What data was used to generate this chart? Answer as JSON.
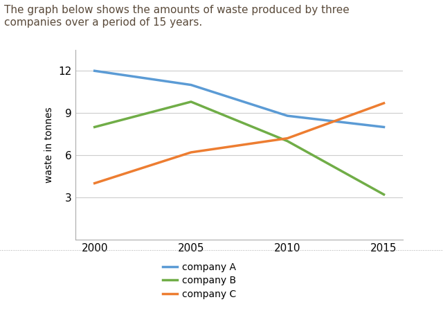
{
  "title_line1": "The graph below shows the amounts of waste produced by three",
  "title_line2": "companies over a period of 15 years.",
  "ylabel": "waste in tonnes",
  "years": [
    2000,
    2005,
    2010,
    2015
  ],
  "company_A": [
    12.0,
    11.0,
    8.8,
    8.0
  ],
  "company_B": [
    8.0,
    9.8,
    7.0,
    3.2
  ],
  "company_C": [
    4.0,
    6.2,
    7.2,
    9.7
  ],
  "color_A": "#5B9BD5",
  "color_B": "#70AD47",
  "color_C": "#ED7D31",
  "yticks": [
    3,
    6,
    9,
    12
  ],
  "xticks": [
    2000,
    2005,
    2010,
    2015
  ],
  "ylim": [
    0,
    13.5
  ],
  "xlim": [
    1999,
    2016
  ],
  "linewidth": 2.5,
  "grid_color": "#CCCCCC",
  "background_color": "#FFFFFF",
  "title_fontsize": 11,
  "axis_label_fontsize": 10,
  "tick_fontsize": 11,
  "legend_fontsize": 10,
  "title_color": "#5A4A3A"
}
